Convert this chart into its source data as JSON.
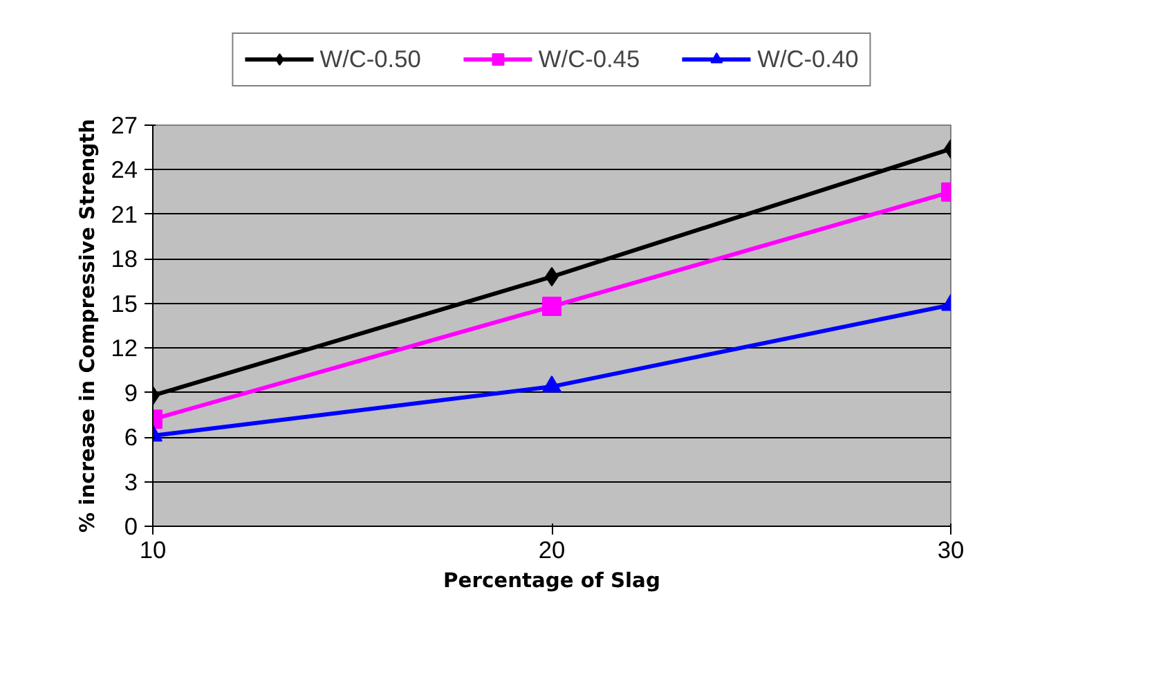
{
  "chart_data": {
    "type": "line",
    "xlabel": "Percentage of Slag",
    "ylabel": "% increase in Compressive Strength",
    "x": [
      10,
      20,
      30
    ],
    "xlim": [
      10,
      30
    ],
    "xticks": [
      10,
      20,
      30
    ],
    "ylim": [
      0,
      27
    ],
    "yticks": [
      0,
      3,
      6,
      9,
      12,
      15,
      18,
      21,
      24,
      27
    ],
    "grid": "y",
    "legend": "top",
    "series": [
      {
        "name": "W/C-0.50",
        "color": "#000000",
        "marker": "diamond",
        "values": [
          8.8,
          16.8,
          25.4
        ]
      },
      {
        "name": "W/C-0.45",
        "color": "#ff00ff",
        "marker": "square",
        "values": [
          7.2,
          14.8,
          22.5
        ]
      },
      {
        "name": "W/C-0.40",
        "color": "#0000ff",
        "marker": "triangle",
        "values": [
          6.1,
          9.4,
          14.9
        ]
      }
    ]
  }
}
